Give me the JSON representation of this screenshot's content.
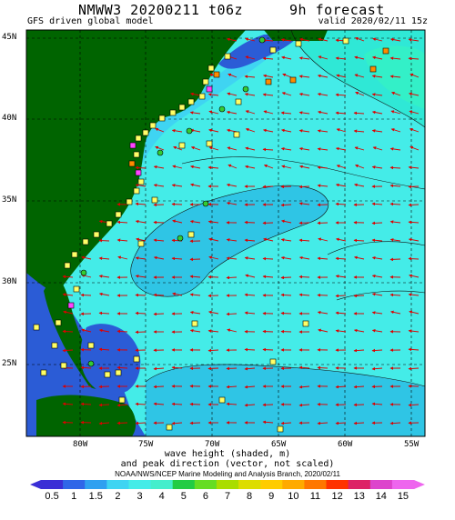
{
  "header": {
    "model": "NMWW3 20200211 t06z",
    "forecast": "9h forecast",
    "driver": "GFS driven global model",
    "valid": "valid 2020/02/11 15z"
  },
  "map": {
    "lat_range": [
      20.5,
      46
    ],
    "lon_range": [
      -85,
      -54
    ],
    "lat_labels": [
      "45N",
      "40N",
      "35N",
      "30N",
      "25N"
    ],
    "lon_labels": [
      "80W",
      "75W",
      "70W",
      "65W",
      "60W",
      "55W"
    ],
    "colors": {
      "land": "#006400",
      "ocean_shallow": "#00ffff",
      "ocean_mid": "#4ae1ef",
      "ocean_deep": "#2fc5e5",
      "ocean_lowest": "#1e78d8",
      "coastal_sound": "#2b5cd6",
      "station_yellow": "#ffff66",
      "station_orange": "#ff8c00",
      "station_magenta": "#ff44ff",
      "buoy_green": "#33cc33",
      "arrow": "#dd0000"
    }
  },
  "caption": {
    "line1": "wave height (shaded, m)",
    "line2": "and peak direction (vector, not scaled)",
    "credit": "NOAA/NWS/NCEP Marine Modeling and Analysis Branch, 2020/02/11"
  },
  "colorbar": {
    "labels": [
      "0.5",
      "1",
      "1.5",
      "2",
      "3",
      "4",
      "5",
      "6",
      "7",
      "8",
      "9",
      "10",
      "11",
      "12",
      "13",
      "14",
      "15"
    ],
    "colors": [
      "#3a2ed6",
      "#2f66e8",
      "#2fa0f0",
      "#3fd4f2",
      "#44ece8",
      "#44eecc",
      "#22cc44",
      "#66dd22",
      "#aadd00",
      "#dddd00",
      "#ffcc00",
      "#ffaa00",
      "#ff7700",
      "#ff3300",
      "#dd2266",
      "#dd44cc",
      "#ee66ee"
    ]
  }
}
